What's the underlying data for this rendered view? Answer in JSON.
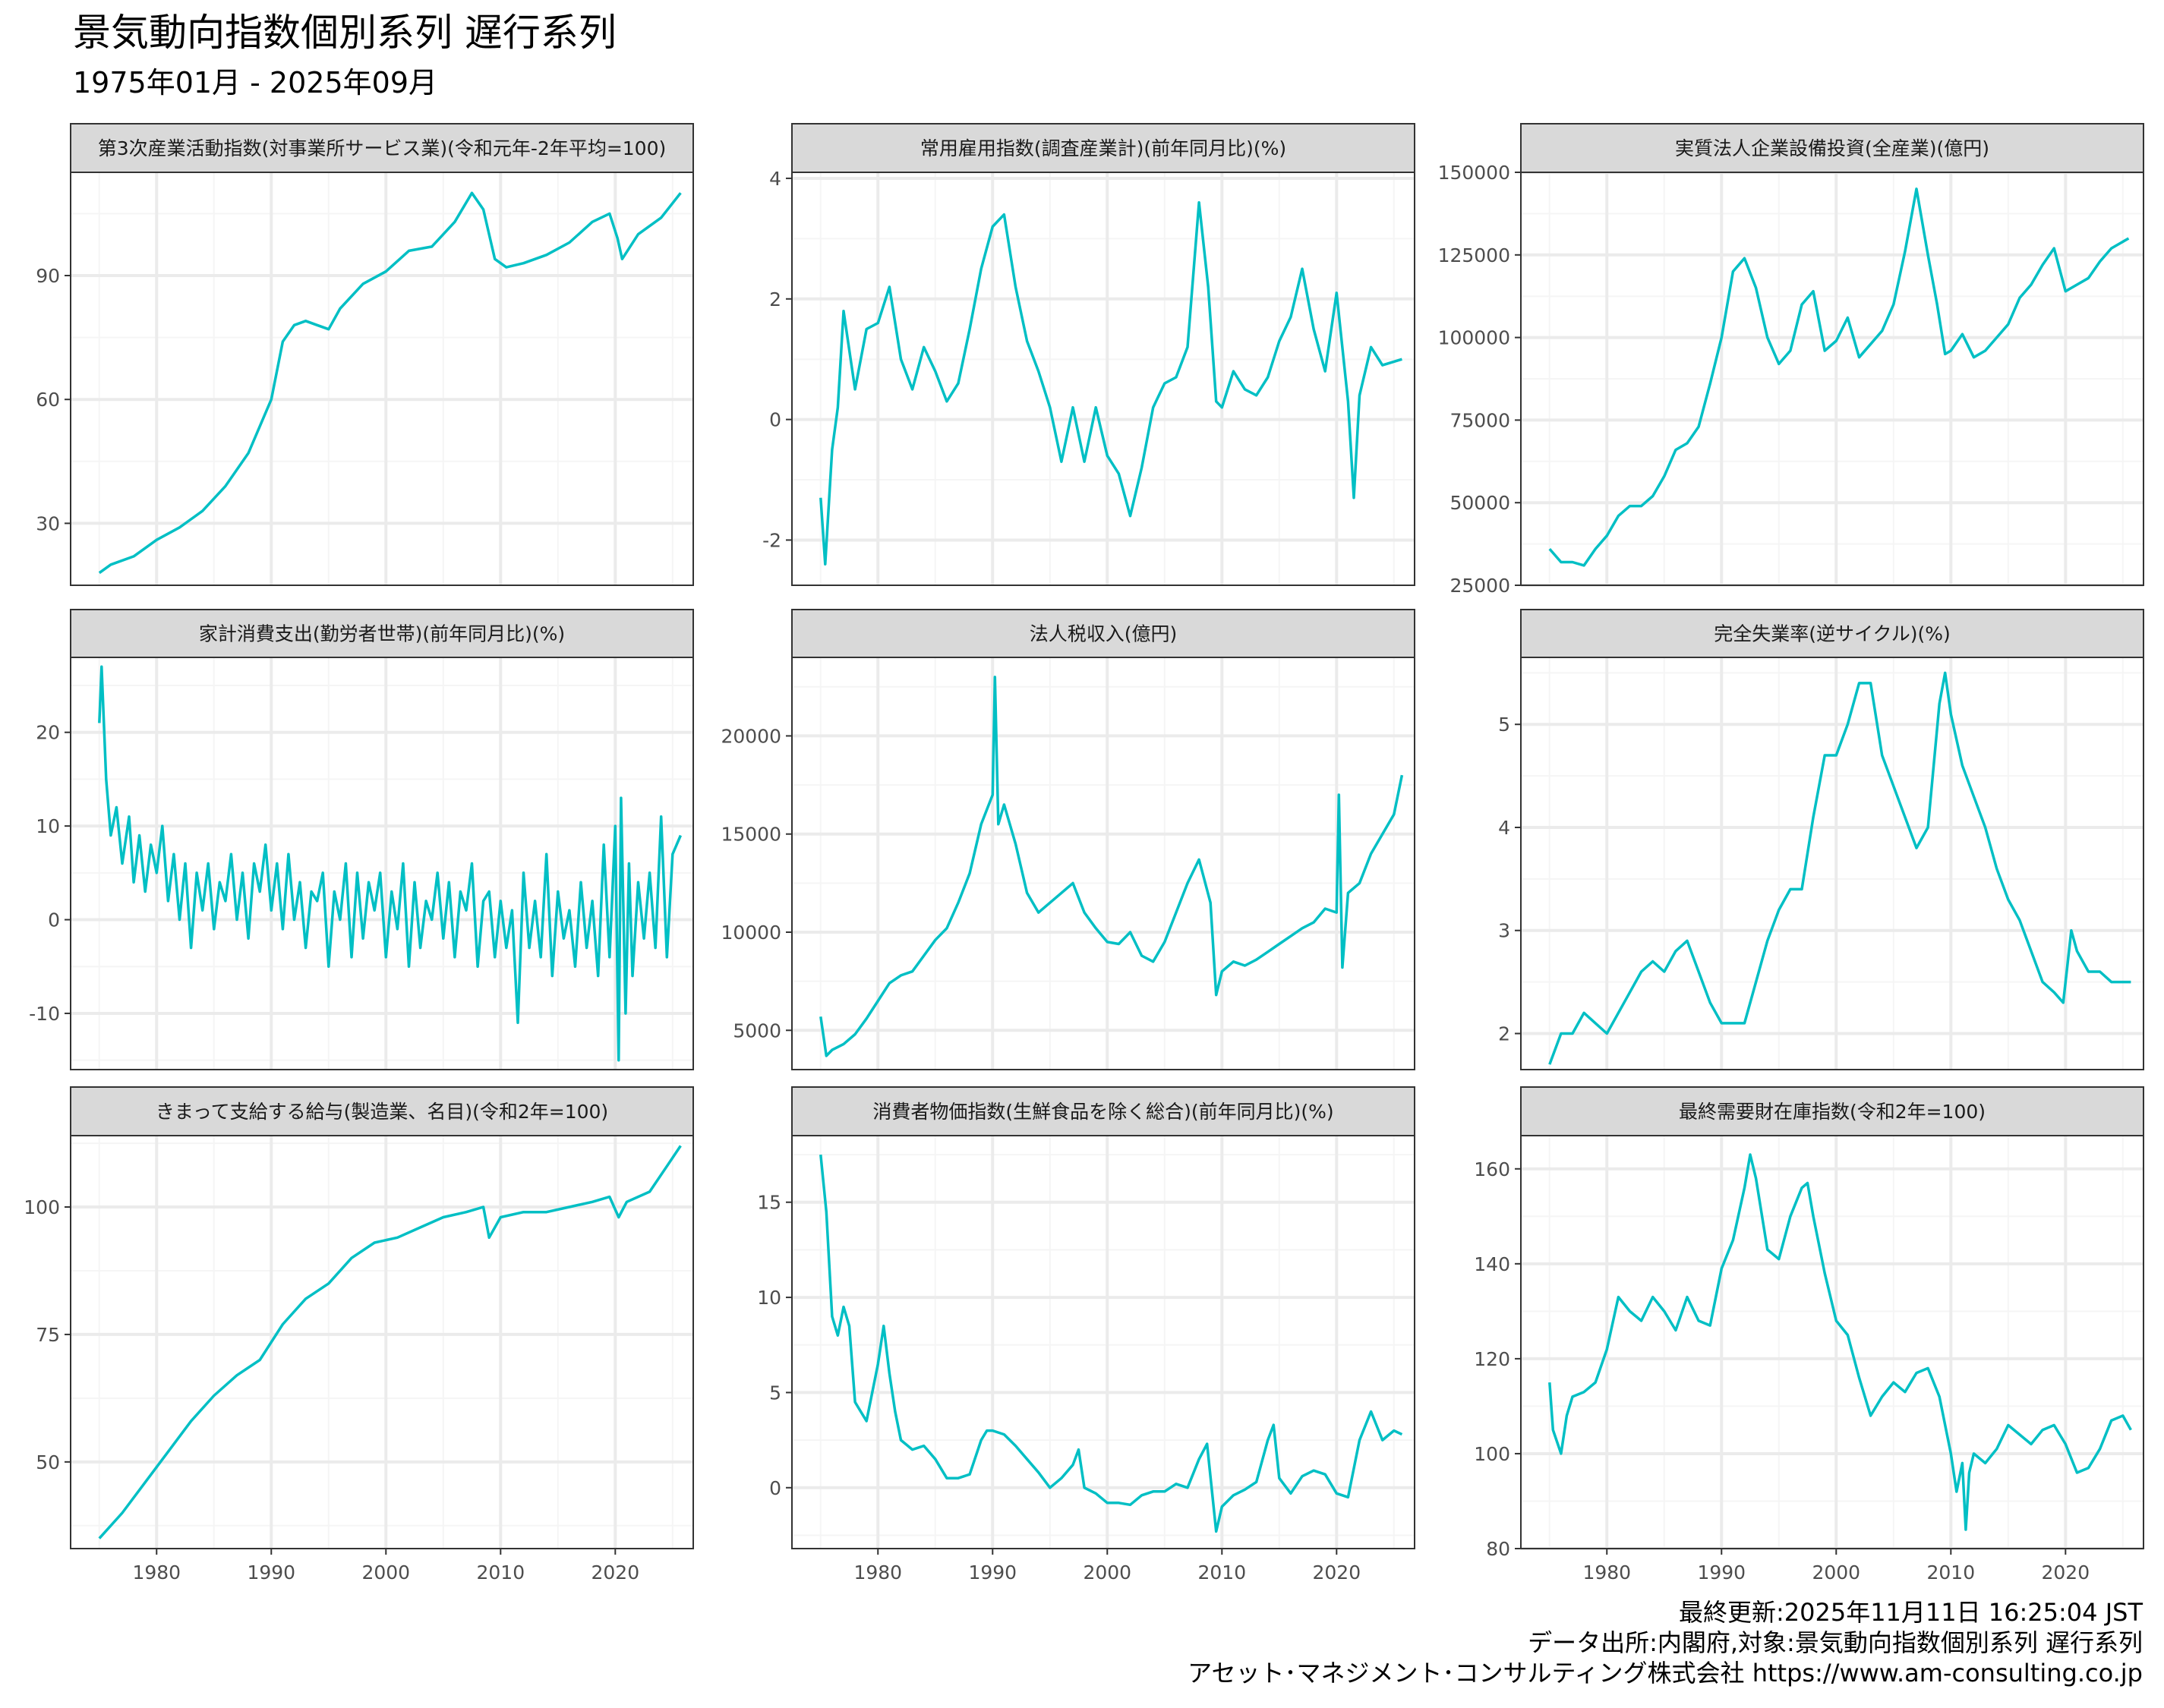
{
  "title": "景気動向指数個別系列 遅行系列",
  "subtitle": "1975年01月 - 2025年09月",
  "caption": [
    "最終更新:2025年11月11日 16:25:04 JST",
    "データ出所:内閣府,対象:景気動向指数個別系列 遅行系列",
    "アセット･マネジメント･コンサルティング株式会社 https://www.am-consulting.co.jp"
  ],
  "colors": {
    "line": "#00bfc4",
    "strip": "#d9d9d9",
    "grid_major": "#ebebeb",
    "grid_minor": "#f5f5f5",
    "border": "#333333",
    "tick_text": "#4d4d4d"
  },
  "chart_data": [
    {
      "type": "line",
      "title": "第3次産業活動指数(対事業所サービス業)(令和元年-2年平均=100)",
      "x": [
        1975.0,
        1976.0,
        1978.0,
        1980.0,
        1982.0,
        1984.0,
        1986.0,
        1988.0,
        1990.0,
        1991.0,
        1992.0,
        1993.0,
        1994.0,
        1995.0,
        1996.0,
        1998.0,
        2000.0,
        2002.0,
        2004.0,
        2006.0,
        2007.5,
        2008.5,
        2009.5,
        2010.5,
        2012.0,
        2014.0,
        2016.0,
        2018.0,
        2019.5,
        2020.2,
        2020.6,
        2022.0,
        2024.0,
        2025.7
      ],
      "values": [
        18,
        20,
        22,
        26,
        29,
        33,
        39,
        47,
        60,
        74,
        78,
        79,
        78,
        77,
        82,
        88,
        91,
        96,
        97,
        103,
        110,
        106,
        94,
        92,
        93,
        95,
        98,
        103,
        105,
        99,
        94,
        100,
        104,
        110
      ],
      "ylim": [
        15,
        115
      ],
      "yticks": [
        30,
        60,
        90
      ],
      "xticks": [
        1980,
        1990,
        2000,
        2010,
        2020
      ]
    },
    {
      "type": "line",
      "title": "常用雇用指数(調査産業計)(前年同月比)(%)",
      "x": [
        1975.0,
        1975.4,
        1976.0,
        1976.5,
        1977.0,
        1978.0,
        1979.0,
        1980.0,
        1981.0,
        1982.0,
        1983.0,
        1984.0,
        1985.0,
        1986.0,
        1987.0,
        1988.0,
        1989.0,
        1990.0,
        1991.0,
        1992.0,
        1993.0,
        1994.0,
        1995.0,
        1996.0,
        1997.0,
        1998.0,
        1999.0,
        2000.0,
        2001.0,
        2002.0,
        2003.0,
        2004.0,
        2005.0,
        2006.0,
        2007.0,
        2008.0,
        2008.8,
        2009.5,
        2010.0,
        2011.0,
        2012.0,
        2013.0,
        2014.0,
        2015.0,
        2016.0,
        2017.0,
        2018.0,
        2019.0,
        2020.0,
        2021.0,
        2021.5,
        2022.0,
        2023.0,
        2024.0,
        2025.7
      ],
      "values": [
        -1.3,
        -2.4,
        -0.5,
        0.2,
        1.8,
        0.5,
        1.5,
        1.6,
        2.2,
        1.0,
        0.5,
        1.2,
        0.8,
        0.3,
        0.6,
        1.5,
        2.5,
        3.2,
        3.4,
        2.2,
        1.3,
        0.8,
        0.2,
        -0.7,
        0.2,
        -0.7,
        0.2,
        -0.6,
        -0.9,
        -1.6,
        -0.8,
        0.2,
        0.6,
        0.7,
        1.2,
        3.6,
        2.2,
        0.3,
        0.2,
        0.8,
        0.5,
        0.4,
        0.7,
        1.3,
        1.7,
        2.5,
        1.5,
        0.8,
        2.1,
        0.3,
        -1.3,
        0.4,
        1.2,
        0.9,
        1.0
      ],
      "ylim": [
        -2.75,
        4.1
      ],
      "yticks": [
        -2,
        0,
        2,
        4
      ],
      "xticks": [
        1980,
        1990,
        2000,
        2010,
        2020
      ]
    },
    {
      "type": "line",
      "title": "実質法人企業設備投資(全産業)(億円)",
      "x": [
        1975.0,
        1976.0,
        1977.0,
        1978.0,
        1979.0,
        1980.0,
        1981.0,
        1982.0,
        1983.0,
        1984.0,
        1985.0,
        1986.0,
        1987.0,
        1988.0,
        1989.0,
        1990.0,
        1991.0,
        1992.0,
        1993.0,
        1994.0,
        1995.0,
        1996.0,
        1997.0,
        1998.0,
        1999.0,
        2000.0,
        2001.0,
        2002.0,
        2003.0,
        2004.0,
        2005.0,
        2006.0,
        2007.0,
        2008.0,
        2008.8,
        2009.5,
        2010.0,
        2011.0,
        2012.0,
        2013.0,
        2014.0,
        2015.0,
        2016.0,
        2017.0,
        2018.0,
        2019.0,
        2020.0,
        2021.0,
        2022.0,
        2023.0,
        2024.0,
        2025.5
      ],
      "values": [
        36000,
        32000,
        32000,
        31000,
        36000,
        40000,
        46000,
        49000,
        49000,
        52000,
        58000,
        66000,
        68000,
        73000,
        86000,
        100000,
        120000,
        124000,
        115000,
        100000,
        92000,
        96000,
        110000,
        114000,
        96000,
        99000,
        106000,
        94000,
        98000,
        102000,
        110000,
        126000,
        145000,
        125000,
        110000,
        95000,
        96000,
        101000,
        94000,
        96000,
        100000,
        104000,
        112000,
        116000,
        122000,
        127000,
        114000,
        116000,
        118000,
        123000,
        127000,
        130000
      ],
      "ylim": [
        25000,
        150000
      ],
      "yticks": [
        25000,
        50000,
        75000,
        100000,
        125000,
        150000
      ],
      "xticks": [
        1980,
        1990,
        2000,
        2010,
        2020
      ]
    },
    {
      "type": "line",
      "title": "家計消費支出(勤労者世帯)(前年同月比)(%)",
      "x": [
        1975.0,
        1975.2,
        1975.6,
        1976.0,
        1976.5,
        1977.0,
        1977.6,
        1978.0,
        1978.5,
        1979.0,
        1979.5,
        1980.0,
        1980.5,
        1981.0,
        1981.5,
        1982.0,
        1982.5,
        1983.0,
        1983.5,
        1984.0,
        1984.5,
        1985.0,
        1985.5,
        1986.0,
        1986.5,
        1987.0,
        1987.5,
        1988.0,
        1988.5,
        1989.0,
        1989.5,
        1990.0,
        1990.5,
        1991.0,
        1991.5,
        1992.0,
        1992.5,
        1993.0,
        1993.5,
        1994.0,
        1994.5,
        1995.0,
        1995.5,
        1996.0,
        1996.5,
        1997.0,
        1997.5,
        1998.0,
        1998.5,
        1999.0,
        1999.5,
        2000.0,
        2000.5,
        2001.0,
        2001.5,
        2002.0,
        2002.5,
        2003.0,
        2003.5,
        2004.0,
        2004.5,
        2005.0,
        2005.5,
        2006.0,
        2006.5,
        2007.0,
        2007.5,
        2008.0,
        2008.5,
        2009.0,
        2009.5,
        2010.0,
        2010.5,
        2011.0,
        2011.5,
        2012.0,
        2012.5,
        2013.0,
        2013.5,
        2014.0,
        2014.5,
        2015.0,
        2015.5,
        2016.0,
        2016.5,
        2017.0,
        2017.5,
        2018.0,
        2018.5,
        2019.0,
        2019.5,
        2020.0,
        2020.3,
        2020.5,
        2020.9,
        2021.2,
        2021.5,
        2022.0,
        2022.5,
        2023.0,
        2023.5,
        2024.0,
        2024.5,
        2025.0,
        2025.7
      ],
      "values": [
        21,
        27,
        15,
        9,
        12,
        6,
        11,
        4,
        9,
        3,
        8,
        5,
        10,
        2,
        7,
        0,
        6,
        -3,
        5,
        1,
        6,
        -1,
        4,
        2,
        7,
        0,
        5,
        -2,
        6,
        3,
        8,
        1,
        6,
        -1,
        7,
        0,
        4,
        -3,
        3,
        2,
        5,
        -5,
        3,
        0,
        6,
        -4,
        5,
        -2,
        4,
        1,
        5,
        -4,
        3,
        -1,
        6,
        -5,
        4,
        -3,
        2,
        0,
        5,
        -2,
        4,
        -4,
        3,
        1,
        6,
        -5,
        2,
        3,
        -4,
        2,
        -3,
        1,
        -11,
        5,
        -3,
        2,
        -4,
        7,
        -6,
        3,
        -2,
        1,
        -5,
        4,
        -3,
        2,
        -6,
        8,
        -4,
        10,
        -15,
        13,
        -10,
        6,
        -6,
        4,
        -2,
        5,
        -3,
        11,
        -4,
        7,
        9
      ],
      "ylim": [
        -16,
        28
      ],
      "yticks": [
        -10,
        0,
        10,
        20
      ],
      "xticks": [
        1980,
        1990,
        2000,
        2010,
        2020
      ]
    },
    {
      "type": "line",
      "title": "法人税収入(億円)",
      "x": [
        1975.0,
        1975.5,
        1976.0,
        1977.0,
        1978.0,
        1979.0,
        1980.0,
        1981.0,
        1982.0,
        1983.0,
        1984.0,
        1985.0,
        1986.0,
        1987.0,
        1988.0,
        1989.0,
        1990.0,
        1990.2,
        1990.5,
        1991.0,
        1992.0,
        1993.0,
        1994.0,
        1995.0,
        1996.0,
        1997.0,
        1998.0,
        1999.0,
        2000.0,
        2001.0,
        2002.0,
        2003.0,
        2004.0,
        2005.0,
        2006.0,
        2007.0,
        2008.0,
        2009.0,
        2009.5,
        2010.0,
        2011.0,
        2012.0,
        2013.0,
        2014.0,
        2015.0,
        2016.0,
        2017.0,
        2018.0,
        2019.0,
        2020.0,
        2020.2,
        2020.5,
        2021.0,
        2022.0,
        2023.0,
        2024.0,
        2025.0,
        2025.7
      ],
      "values": [
        5700,
        3700,
        4000,
        4300,
        4800,
        5600,
        6500,
        7400,
        7800,
        8000,
        8800,
        9600,
        10200,
        11500,
        13000,
        15500,
        17000,
        23000,
        15500,
        16500,
        14500,
        12000,
        11000,
        11500,
        12000,
        12500,
        11000,
        10200,
        9500,
        9400,
        10000,
        8800,
        8500,
        9500,
        11000,
        12500,
        13700,
        11500,
        6800,
        8000,
        8500,
        8300,
        8600,
        9000,
        9400,
        9800,
        10200,
        10500,
        11200,
        11000,
        17000,
        8200,
        12000,
        12500,
        14000,
        15000,
        16000,
        18000
      ],
      "ylim": [
        3000,
        24000
      ],
      "yticks": [
        5000,
        10000,
        15000,
        20000
      ],
      "xticks": [
        1980,
        1990,
        2000,
        2010,
        2020
      ]
    },
    {
      "type": "line",
      "title": "完全失業率(逆サイクル)(%)",
      "x": [
        1975.0,
        1976.0,
        1977.0,
        1978.0,
        1979.0,
        1980.0,
        1981.0,
        1982.0,
        1983.0,
        1984.0,
        1985.0,
        1986.0,
        1987.0,
        1988.0,
        1989.0,
        1990.0,
        1991.0,
        1992.0,
        1993.0,
        1994.0,
        1995.0,
        1996.0,
        1997.0,
        1998.0,
        1999.0,
        2000.0,
        2001.0,
        2002.0,
        2003.0,
        2004.0,
        2005.0,
        2006.0,
        2007.0,
        2008.0,
        2009.0,
        2009.5,
        2010.0,
        2011.0,
        2012.0,
        2013.0,
        2014.0,
        2015.0,
        2016.0,
        2017.0,
        2018.0,
        2019.0,
        2019.8,
        2020.5,
        2021.0,
        2022.0,
        2023.0,
        2024.0,
        2025.7
      ],
      "values": [
        1.7,
        2.0,
        2.0,
        2.2,
        2.1,
        2.0,
        2.2,
        2.4,
        2.6,
        2.7,
        2.6,
        2.8,
        2.9,
        2.6,
        2.3,
        2.1,
        2.1,
        2.1,
        2.5,
        2.9,
        3.2,
        3.4,
        3.4,
        4.1,
        4.7,
        4.7,
        5.0,
        5.4,
        5.4,
        4.7,
        4.4,
        4.1,
        3.8,
        4.0,
        5.2,
        5.5,
        5.1,
        4.6,
        4.3,
        4.0,
        3.6,
        3.3,
        3.1,
        2.8,
        2.5,
        2.4,
        2.3,
        3.0,
        2.8,
        2.6,
        2.6,
        2.5,
        2.5
      ],
      "ylim": [
        1.65,
        5.65
      ],
      "yticks": [
        2,
        3,
        4,
        5
      ],
      "xticks": [
        1980,
        1990,
        2000,
        2010,
        2020
      ]
    },
    {
      "type": "line",
      "title": "きまって支給する給与(製造業、名目)(令和2年=100)",
      "x": [
        1975.0,
        1977.0,
        1979.0,
        1981.0,
        1983.0,
        1985.0,
        1987.0,
        1989.0,
        1991.0,
        1993.0,
        1995.0,
        1997.0,
        1999.0,
        2001.0,
        2003.0,
        2005.0,
        2007.0,
        2008.5,
        2009.0,
        2010.0,
        2012.0,
        2014.0,
        2016.0,
        2018.0,
        2019.5,
        2020.3,
        2021.0,
        2023.0,
        2024.5,
        2025.7
      ],
      "values": [
        35,
        40,
        46,
        52,
        58,
        63,
        67,
        70,
        77,
        82,
        85,
        90,
        93,
        94,
        96,
        98,
        99,
        100,
        94,
        98,
        99,
        99,
        100,
        101,
        102,
        98,
        101,
        103,
        108,
        112
      ],
      "ylim": [
        33,
        114
      ],
      "yticks": [
        50,
        75,
        100
      ],
      "xticks": [
        1980,
        1990,
        2000,
        2010,
        2020
      ]
    },
    {
      "type": "line",
      "title": "消費者物価指数(生鮮食品を除く総合)(前年同月比)(%)",
      "x": [
        1975.0,
        1975.5,
        1976.0,
        1976.5,
        1977.0,
        1977.5,
        1978.0,
        1978.5,
        1979.0,
        1980.0,
        1980.5,
        1981.0,
        1981.5,
        1982.0,
        1983.0,
        1984.0,
        1985.0,
        1986.0,
        1987.0,
        1988.0,
        1989.0,
        1989.5,
        1990.0,
        1991.0,
        1992.0,
        1993.0,
        1994.0,
        1995.0,
        1996.0,
        1997.0,
        1997.5,
        1998.0,
        1999.0,
        2000.0,
        2001.0,
        2002.0,
        2003.0,
        2004.0,
        2005.0,
        2006.0,
        2007.0,
        2008.0,
        2008.7,
        2009.5,
        2010.0,
        2011.0,
        2012.0,
        2013.0,
        2014.0,
        2014.5,
        2015.0,
        2016.0,
        2017.0,
        2018.0,
        2019.0,
        2020.0,
        2021.0,
        2022.0,
        2023.0,
        2024.0,
        2025.0,
        2025.7
      ],
      "values": [
        17.5,
        14.5,
        9.0,
        8.0,
        9.5,
        8.5,
        4.5,
        4.0,
        3.5,
        6.5,
        8.5,
        6.0,
        4.0,
        2.5,
        2.0,
        2.2,
        1.5,
        0.5,
        0.5,
        0.7,
        2.5,
        3.0,
        3.0,
        2.8,
        2.2,
        1.5,
        0.8,
        0.0,
        0.5,
        1.2,
        2.0,
        0.0,
        -0.3,
        -0.8,
        -0.8,
        -0.9,
        -0.4,
        -0.2,
        -0.2,
        0.2,
        0.0,
        1.5,
        2.3,
        -2.3,
        -1.0,
        -0.4,
        -0.1,
        0.3,
        2.5,
        3.3,
        0.5,
        -0.3,
        0.6,
        0.9,
        0.7,
        -0.3,
        -0.5,
        2.5,
        4.0,
        2.5,
        3.0,
        2.8
      ],
      "ylim": [
        -3.2,
        18.5
      ],
      "yticks": [
        0,
        5,
        10,
        15
      ],
      "xticks": [
        1980,
        1990,
        2000,
        2010,
        2020
      ]
    },
    {
      "type": "line",
      "title": "最終需要財在庫指数(令和2年=100)",
      "x": [
        1975.0,
        1975.3,
        1976.0,
        1976.5,
        1977.0,
        1978.0,
        1979.0,
        1980.0,
        1981.0,
        1982.0,
        1983.0,
        1984.0,
        1985.0,
        1986.0,
        1987.0,
        1988.0,
        1989.0,
        1990.0,
        1991.0,
        1992.0,
        1992.5,
        1993.0,
        1994.0,
        1995.0,
        1996.0,
        1997.0,
        1997.5,
        1998.0,
        1999.0,
        2000.0,
        2001.0,
        2002.0,
        2003.0,
        2004.0,
        2005.0,
        2006.0,
        2007.0,
        2008.0,
        2009.0,
        2010.0,
        2010.5,
        2011.0,
        2011.3,
        2011.6,
        2012.0,
        2013.0,
        2014.0,
        2015.0,
        2016.0,
        2017.0,
        2018.0,
        2019.0,
        2020.0,
        2021.0,
        2022.0,
        2023.0,
        2024.0,
        2025.0,
        2025.7
      ],
      "values": [
        115,
        105,
        100,
        108,
        112,
        113,
        115,
        122,
        133,
        130,
        128,
        133,
        130,
        126,
        133,
        128,
        127,
        139,
        145,
        156,
        163,
        158,
        143,
        141,
        150,
        156,
        157,
        150,
        138,
        128,
        125,
        116,
        108,
        112,
        115,
        113,
        117,
        118,
        112,
        100,
        92,
        98,
        84,
        96,
        100,
        98,
        101,
        106,
        104,
        102,
        105,
        106,
        102,
        96,
        97,
        101,
        107,
        108,
        105
      ],
      "ylim": [
        80,
        167
      ],
      "yticks": [
        80,
        100,
        120,
        140,
        160
      ],
      "xticks": [
        1980,
        1990,
        2000,
        2010,
        2020
      ]
    }
  ]
}
